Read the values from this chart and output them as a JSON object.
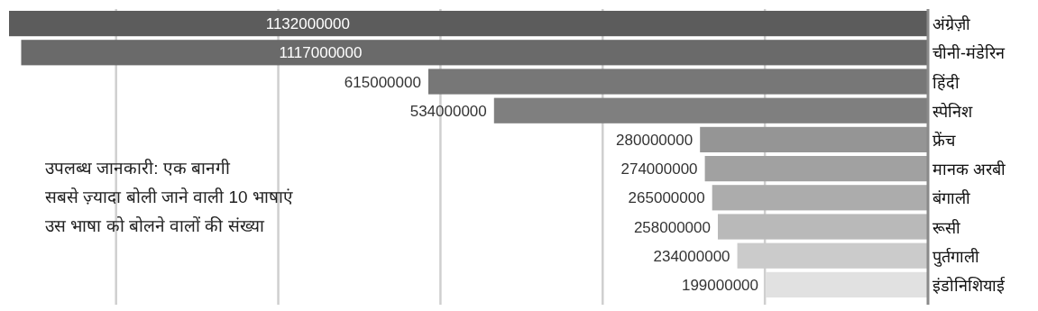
{
  "chart_data": {
    "type": "bar",
    "orientation": "horizontal",
    "title": "उपलब्ध जानकारी: एक बानगी",
    "subtitle": "सबसे ज़्यादा बोली जाने वाली 10 भाषाएं",
    "annotations": [
      "उस भाषा को बोलने वालों की संख्या"
    ],
    "categories": [
      "अंग्रेज़ी",
      "चीनी-मंडेरिन",
      "हिंदी",
      "स्पेनिश",
      "फ्रेंच",
      "मानक अरबी",
      "बंगाली",
      "रूसी",
      "पुर्तगाली",
      "इंडोनिशियाई"
    ],
    "values": [
      1132000000,
      1117000000,
      615000000,
      534000000,
      280000000,
      274000000,
      265000000,
      258000000,
      234000000,
      199000000
    ],
    "colors": [
      "#5c5c5c",
      "#6a6a6a",
      "#777777",
      "#7f7f7f",
      "#959595",
      "#a1a1a1",
      "#acacac",
      "#b9b9b9",
      "#cbcbcb",
      "#e1e1e1"
    ],
    "xticks": [
      {
        "value": 1000000000,
        "label": null
      },
      {
        "value": 800000000,
        "label": null
      },
      {
        "value": 600000000,
        "label": null
      },
      {
        "value": 400000000,
        "label": null
      },
      {
        "value": 200000000,
        "label": null
      }
    ],
    "grid": "x",
    "data_labels": true,
    "tick_labels": "y"
  }
}
